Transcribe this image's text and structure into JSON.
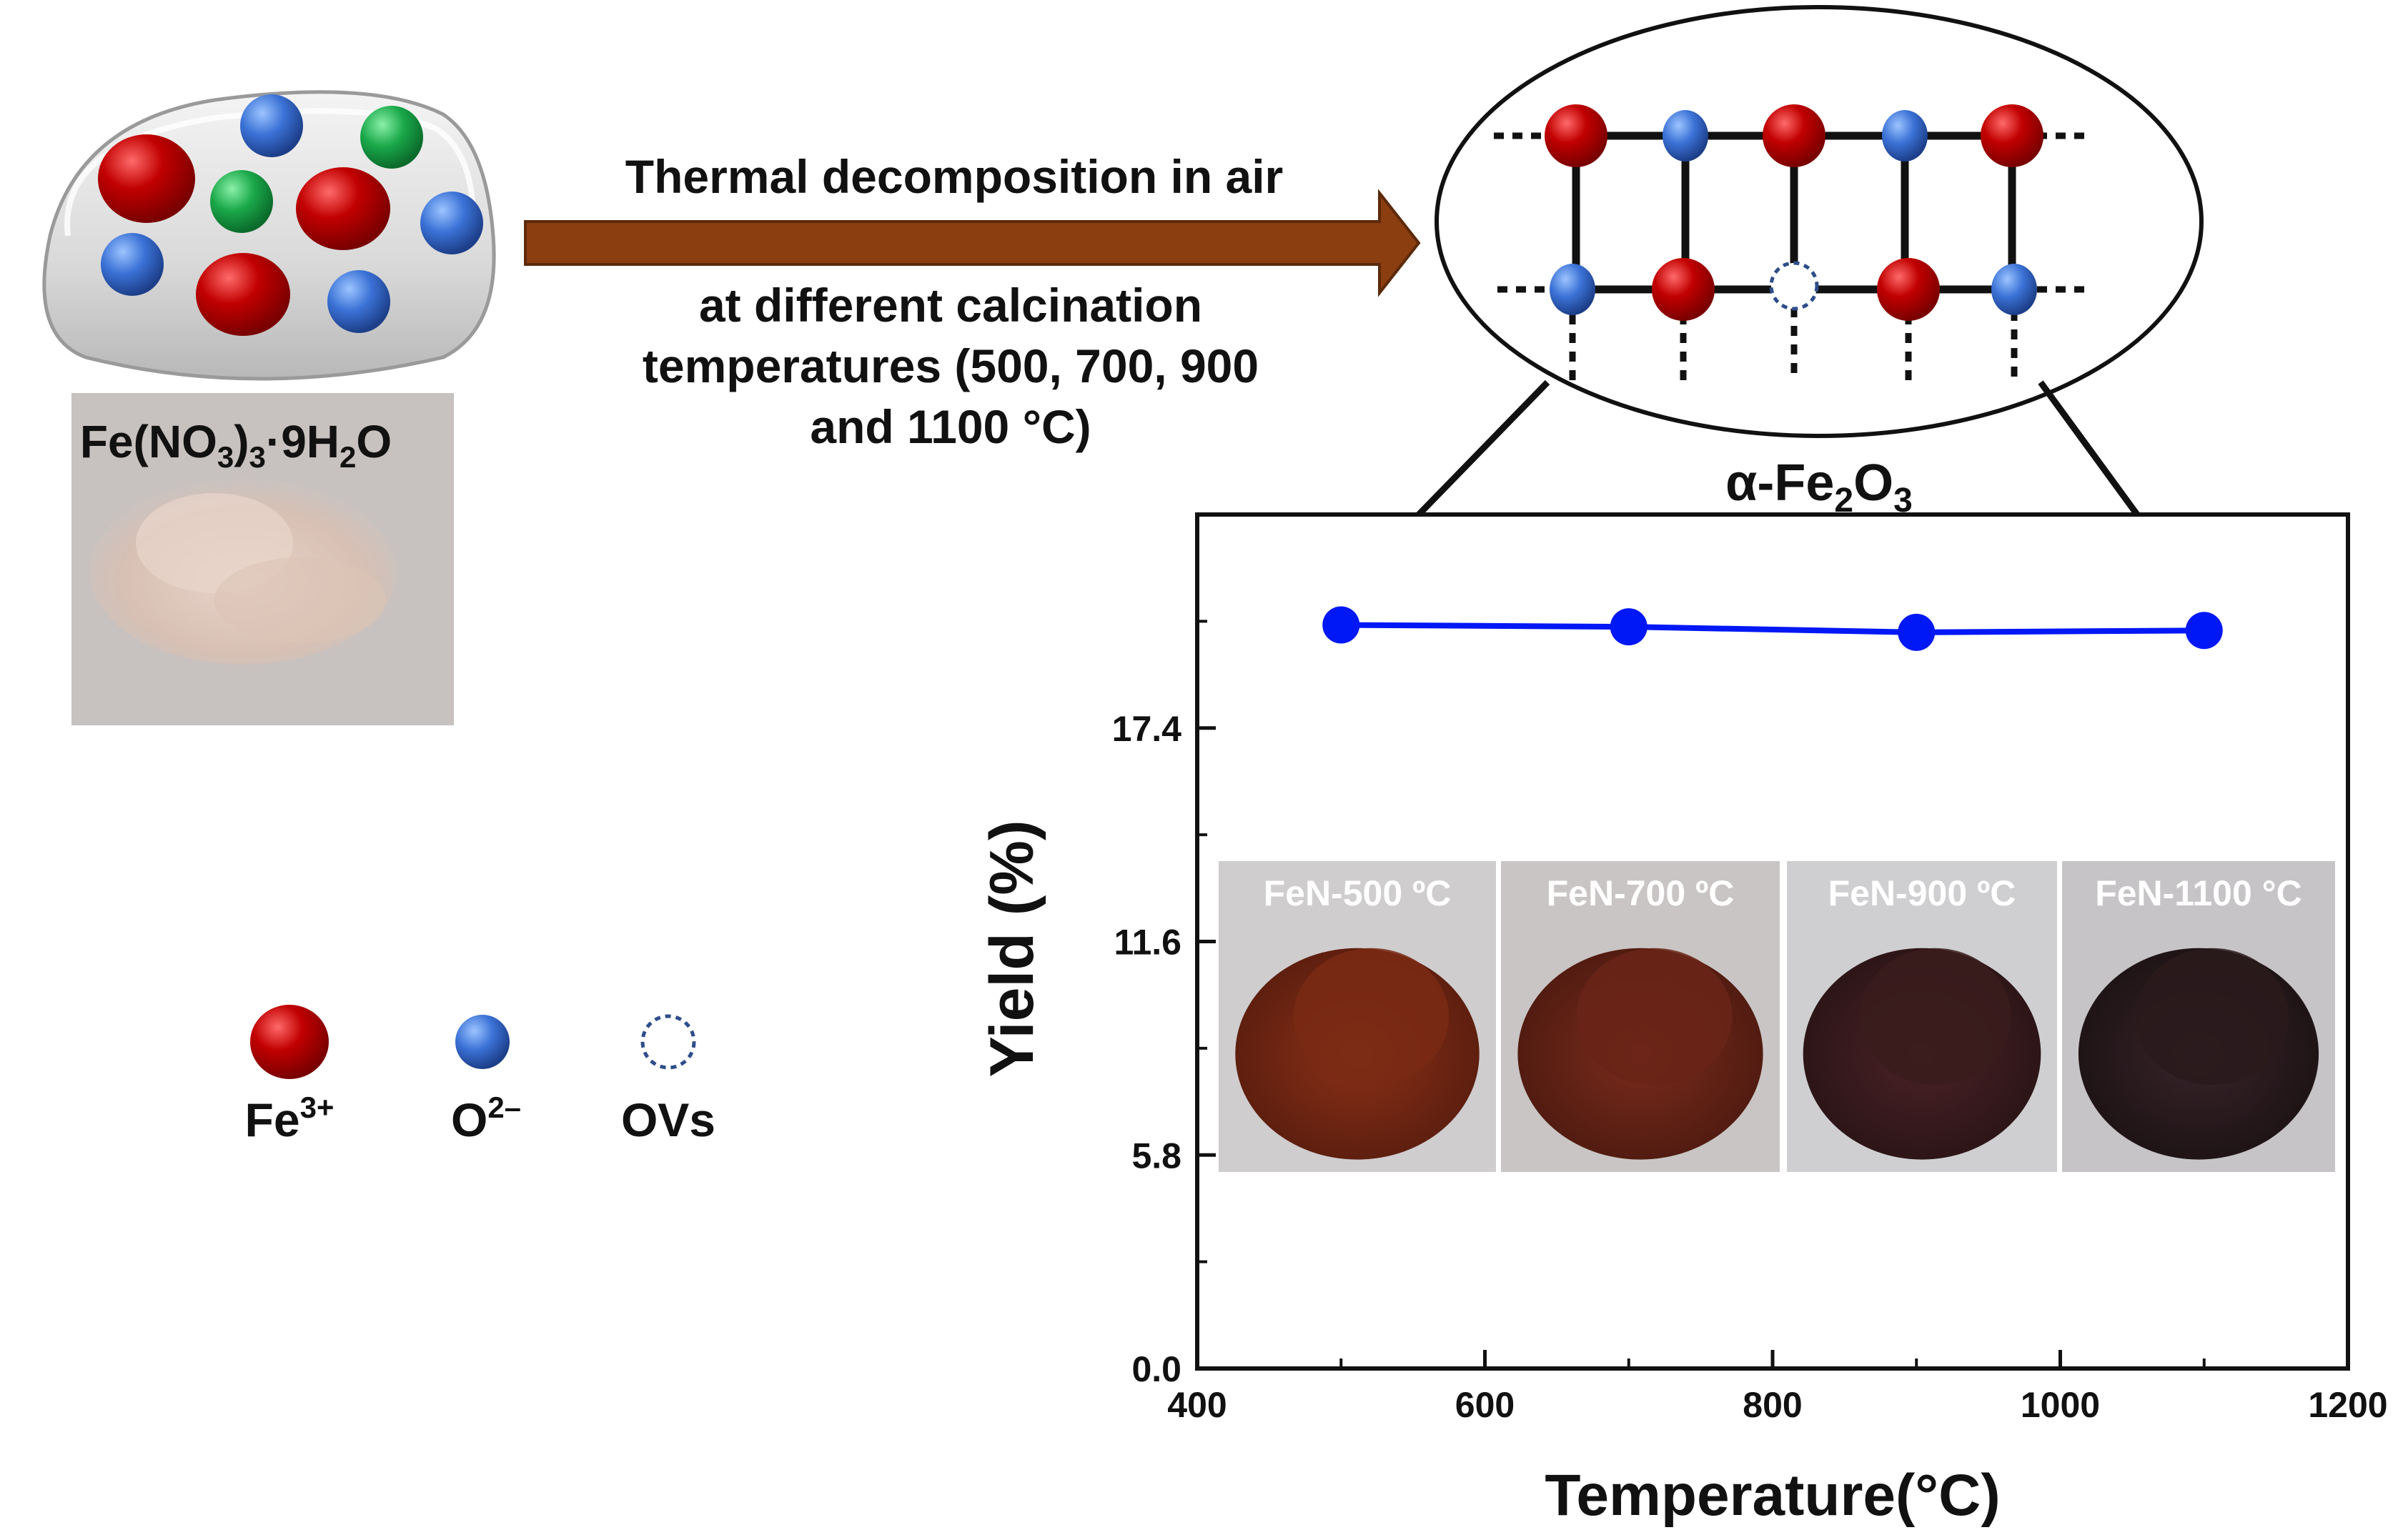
{
  "precursor": {
    "formula_parts": [
      "Fe(NO",
      "3",
      ")",
      "3",
      "·9H",
      "2",
      "O"
    ]
  },
  "process": {
    "line1": "Thermal decomposition in air",
    "line2": "at different calcination",
    "line3": "temperatures (500, 700, 900",
    "line4": "and 1100 °C)"
  },
  "product": {
    "name_parts": [
      "α-Fe",
      "2",
      "O",
      "3"
    ]
  },
  "legend": {
    "fe_label": "Fe",
    "fe_sup": "3+",
    "o_label": "O",
    "o_sup": "2–",
    "ov_label": "OVs"
  },
  "colors": {
    "fe_ion": "#b30000",
    "o_ion": "#2e66c8",
    "nitrate": "#17a34a",
    "arrow": "#8b3e0f",
    "series": "#0018f5"
  },
  "samples": [
    {
      "label": "FeN-500 ºC",
      "color": "#7a2a14"
    },
    {
      "label": "FeN-700 ºC",
      "color": "#6a2417"
    },
    {
      "label": "FeN-900 ºC",
      "color": "#3a1c1c"
    },
    {
      "label": "FeN-1100 °C",
      "color": "#2a1a1c"
    }
  ],
  "chart_data": {
    "type": "line",
    "x": [
      500,
      700,
      900,
      1100
    ],
    "series": [
      {
        "name": "Yield",
        "values": [
          20.2,
          20.15,
          20.0,
          20.05
        ]
      }
    ],
    "xlabel": "Temperature(°C)",
    "ylabel": "Yield (%)",
    "xlim": [
      400,
      1200
    ],
    "ylim": [
      0,
      23.2
    ],
    "xticks": [
      400,
      600,
      800,
      1000,
      1200
    ],
    "yticks": [
      0.0,
      5.8,
      11.6,
      17.4
    ],
    "ytick_labels": [
      "0.0",
      "5.8",
      "11.6",
      "17.4"
    ],
    "grid": false
  }
}
